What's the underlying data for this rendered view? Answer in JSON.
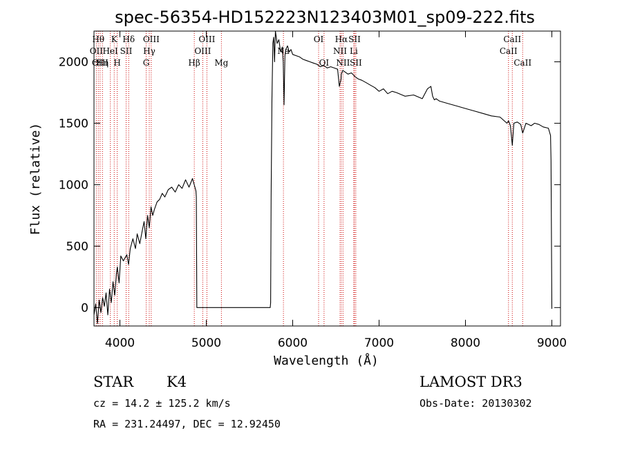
{
  "chart_data": {
    "type": "line",
    "title": "spec-56354-HD152223N123403M01_sp09-222.fits",
    "xlabel": "Wavelength (Å)",
    "ylabel": "Flux (relative)",
    "xlim": [
      3700,
      9100
    ],
    "ylim": [
      -150,
      2250
    ],
    "x_ticks": [
      4000,
      5000,
      6000,
      7000,
      8000,
      9000
    ],
    "x_tick_labels": [
      "4000",
      "5000",
      "6000",
      "7000",
      "8000",
      "9000"
    ],
    "y_ticks": [
      0,
      500,
      1000,
      1500,
      2000
    ],
    "y_tick_labels": [
      "0",
      "500",
      "1000",
      "1500",
      "2000"
    ],
    "grid": false,
    "series": [
      {
        "color": "#000000",
        "x": [
          3700,
          3720,
          3740,
          3760,
          3780,
          3800,
          3820,
          3840,
          3860,
          3880,
          3900,
          3920,
          3940,
          3960,
          3970,
          3990,
          4010,
          4040,
          4080,
          4100,
          4120,
          4150,
          4180,
          4200,
          4230,
          4260,
          4280,
          4300,
          4320,
          4340,
          4360,
          4380,
          4400,
          4430,
          4460,
          4490,
          4520,
          4560,
          4600,
          4640,
          4680,
          4720,
          4760,
          4800,
          4840,
          4860,
          4880,
          4885,
          4890,
          5000,
          5500,
          5740,
          5745,
          5750,
          5760,
          5770,
          5780,
          5790,
          5800,
          5820,
          5840,
          5860,
          5880,
          5890,
          5900,
          5910,
          5920,
          5940,
          5960,
          5980,
          6000,
          6040,
          6080,
          6120,
          6160,
          6200,
          6240,
          6280,
          6320,
          6360,
          6400,
          6440,
          6480,
          6520,
          6540,
          6560,
          6563,
          6580,
          6600,
          6640,
          6680,
          6720,
          6760,
          6800,
          6850,
          6900,
          6950,
          7000,
          7050,
          7100,
          7150,
          7200,
          7300,
          7400,
          7500,
          7560,
          7600,
          7620,
          7640,
          7660,
          7700,
          7800,
          7900,
          8000,
          8100,
          8200,
          8300,
          8400,
          8480,
          8498,
          8520,
          8542,
          8560,
          8600,
          8640,
          8662,
          8700,
          8760,
          8800,
          8850,
          8900,
          8960,
          8985,
          8990,
          9000
        ],
        "y": [
          -60,
          30,
          -130,
          60,
          -40,
          80,
          10,
          120,
          -60,
          150,
          40,
          210,
          100,
          280,
          330,
          200,
          420,
          380,
          430,
          350,
          480,
          560,
          480,
          600,
          520,
          630,
          700,
          560,
          750,
          650,
          820,
          750,
          800,
          860,
          880,
          930,
          900,
          960,
          980,
          940,
          1000,
          970,
          1040,
          980,
          1050,
          1000,
          950,
          900,
          0,
          0,
          0,
          0,
          40,
          900,
          1700,
          2150,
          2200,
          2000,
          2250,
          2150,
          2180,
          2080,
          2120,
          2000,
          1650,
          2050,
          2100,
          2130,
          2080,
          2100,
          2060,
          2050,
          2040,
          2020,
          2010,
          2000,
          1990,
          1980,
          1960,
          1970,
          1950,
          1960,
          1950,
          1940,
          1800,
          1860,
          1900,
          1930,
          1920,
          1900,
          1910,
          1880,
          1860,
          1850,
          1830,
          1810,
          1790,
          1760,
          1780,
          1740,
          1760,
          1750,
          1720,
          1730,
          1700,
          1780,
          1800,
          1720,
          1690,
          1700,
          1680,
          1660,
          1640,
          1620,
          1600,
          1580,
          1560,
          1550,
          1500,
          1520,
          1480,
          1320,
          1500,
          1510,
          1490,
          1420,
          1500,
          1480,
          1500,
          1490,
          1470,
          1460,
          1400,
          1200,
          -10
        ]
      }
    ],
    "lines": {
      "color": "#cc0000",
      "entries": [
        {
          "x": 3727,
          "text": "OII",
          "row": 1
        },
        {
          "x": 3750,
          "text": "Hθ",
          "row": 0
        },
        {
          "x": 3771,
          "text": "OIII",
          "row": 2
        },
        {
          "x": 3798,
          "text": "Hη",
          "row": 2
        },
        {
          "x": 3889,
          "text": "HeI",
          "row": 1
        },
        {
          "x": 3934,
          "text": "K",
          "row": 0
        },
        {
          "x": 3969,
          "text": "H",
          "row": 2
        },
        {
          "x": 4072,
          "text": "SII",
          "row": 1
        },
        {
          "x": 4102,
          "text": "Hδ",
          "row": 0
        },
        {
          "x": 4304,
          "text": "G",
          "row": 2
        },
        {
          "x": 4340,
          "text": "Hγ",
          "row": 1
        },
        {
          "x": 4363,
          "text": "OIII",
          "row": 0
        },
        {
          "x": 4861,
          "text": "Hβ",
          "row": 2
        },
        {
          "x": 4959,
          "text": "OIII",
          "row": 1
        },
        {
          "x": 5007,
          "text": "OIII",
          "row": 0
        },
        {
          "x": 5175,
          "text": "Mg",
          "row": 2
        },
        {
          "x": 5893,
          "text": "Na",
          "row": 1
        },
        {
          "x": 6300,
          "text": "OI",
          "row": 0
        },
        {
          "x": 6363,
          "text": "OI",
          "row": 2
        },
        {
          "x": 6548,
          "text": "NII",
          "row": 1
        },
        {
          "x": 6563,
          "text": "Hα",
          "row": 0
        },
        {
          "x": 6583,
          "text": "NII",
          "row": 2
        },
        {
          "x": 6707,
          "text": "Li",
          "row": 1
        },
        {
          "x": 6716,
          "text": "SII",
          "row": 0
        },
        {
          "x": 6731,
          "text": "SII",
          "row": 2
        },
        {
          "x": 8498,
          "text": "CaII",
          "row": 1
        },
        {
          "x": 8542,
          "text": "CaII",
          "row": 0
        },
        {
          "x": 8662,
          "text": "CaII",
          "row": 2
        }
      ]
    }
  },
  "info": {
    "class": "STAR",
    "subclass": "K4",
    "survey": "LAMOST DR3",
    "cz": "cz = 14.2 ± 125.2 km/s",
    "obs_date": "Obs-Date: 20130302",
    "coords": "RA = 231.24497, DEC =  12.92450"
  }
}
